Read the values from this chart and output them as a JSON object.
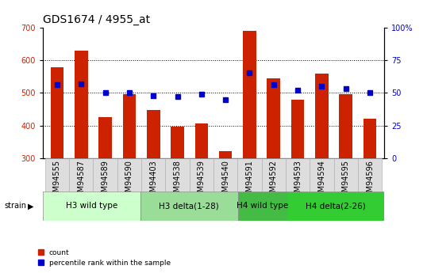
{
  "title": "GDS1674 / 4955_at",
  "samples": [
    "GSM94555",
    "GSM94587",
    "GSM94589",
    "GSM94590",
    "GSM94403",
    "GSM94538",
    "GSM94539",
    "GSM94540",
    "GSM94591",
    "GSM94592",
    "GSM94593",
    "GSM94594",
    "GSM94595",
    "GSM94596"
  ],
  "counts": [
    578,
    628,
    425,
    495,
    447,
    397,
    406,
    322,
    690,
    543,
    480,
    558,
    495,
    422
  ],
  "percentiles": [
    56,
    57,
    50,
    50,
    48,
    47,
    49,
    45,
    65,
    56,
    52,
    55,
    53,
    50
  ],
  "groups": [
    {
      "label": "H3 wild type",
      "start": 0,
      "end": 4,
      "color": "#ccffcc"
    },
    {
      "label": "H3 delta(1-28)",
      "start": 4,
      "end": 8,
      "color": "#99dd99"
    },
    {
      "label": "H4 wild type",
      "start": 8,
      "end": 10,
      "color": "#44bb44"
    },
    {
      "label": "H4 delta(2-26)",
      "start": 10,
      "end": 14,
      "color": "#33cc33"
    }
  ],
  "bar_color": "#cc2200",
  "dot_color": "#0000cc",
  "ylim_left": [
    300,
    700
  ],
  "ylim_right": [
    0,
    100
  ],
  "yticks_left": [
    300,
    400,
    500,
    600,
    700
  ],
  "yticks_right": [
    0,
    25,
    50,
    75,
    100
  ],
  "yticklabels_right": [
    "0",
    "25",
    "50",
    "75",
    "100%"
  ],
  "background_color": "#ffffff",
  "grid_color": "#000000",
  "title_fontsize": 10,
  "tick_fontsize": 7,
  "group_label_fontsize": 7.5
}
